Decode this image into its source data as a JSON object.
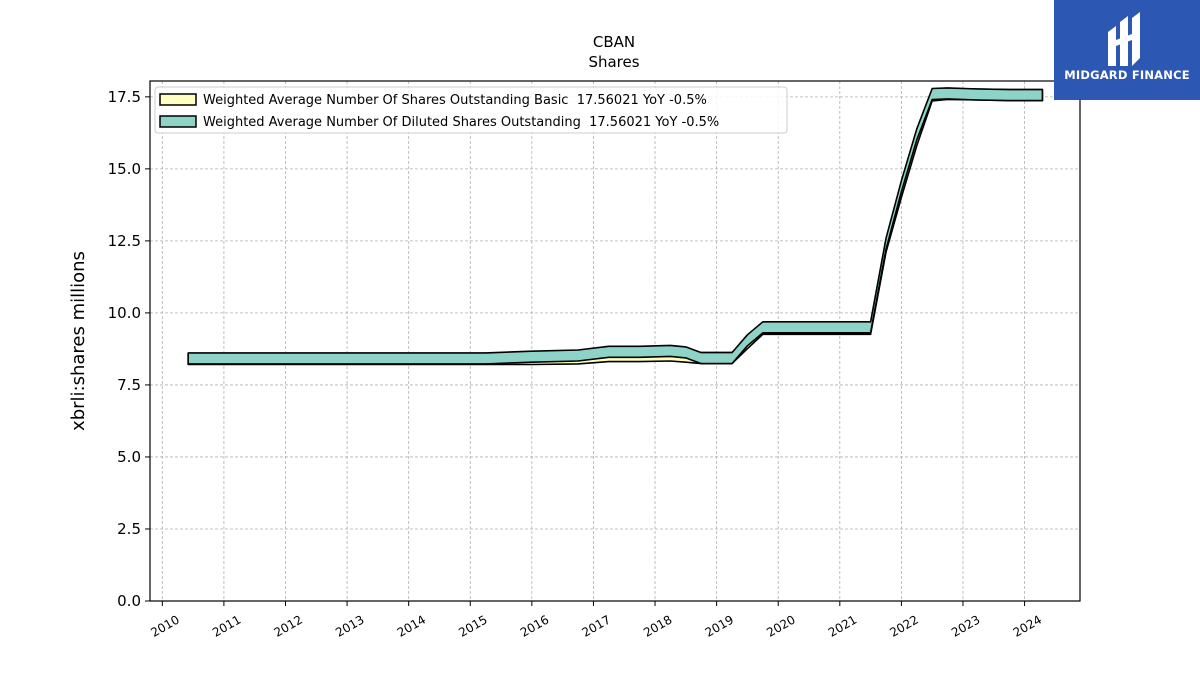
{
  "chart_data": {
    "type": "area",
    "title": "CBAN",
    "subtitle": "Shares",
    "xlabel": "",
    "ylabel": "xbrli:shares millions",
    "xlim": [
      2009.8,
      2024.9
    ],
    "ylim": [
      0,
      18.05
    ],
    "yticks": [
      "0.0",
      "2.5",
      "5.0",
      "7.5",
      "10.0",
      "12.5",
      "15.0",
      "17.5"
    ],
    "xticks": [
      "2010",
      "2011",
      "2012",
      "2013",
      "2014",
      "2015",
      "2016",
      "2017",
      "2018",
      "2019",
      "2020",
      "2021",
      "2022",
      "2023",
      "2024"
    ],
    "grid": true,
    "legend_position": "top-left",
    "series": [
      {
        "name": "Weighted Average Number Of Shares Outstanding Basic  17.56021 YoY -0.5%",
        "color": "#ffffc0",
        "x": [
          2010.42,
          2011.25,
          2012.25,
          2013.25,
          2014.25,
          2015.25,
          2016.0,
          2016.75,
          2017.25,
          2017.75,
          2018.25,
          2018.5,
          2018.75,
          2019.0,
          2019.25,
          2019.5,
          2019.75,
          2020.25,
          2020.75,
          2021.25,
          2021.5,
          2021.75,
          2022.0,
          2022.25,
          2022.5,
          2022.75,
          2023.25,
          2023.75,
          2024.29
        ],
        "y": [
          8.4,
          8.4,
          8.4,
          8.4,
          8.4,
          8.4,
          8.4,
          8.42,
          8.5,
          8.5,
          8.52,
          8.48,
          8.43,
          8.43,
          8.43,
          8.95,
          9.45,
          9.45,
          9.45,
          9.45,
          9.45,
          12.3,
          14.2,
          16.0,
          17.55,
          17.6,
          17.58,
          17.56,
          17.56
        ]
      },
      {
        "name": "Weighted Average Number Of Diluted Shares Outstanding  17.56021 YoY -0.5%",
        "color": "#8dd3c7",
        "x": [
          2010.42,
          2011.25,
          2012.25,
          2013.25,
          2014.25,
          2015.25,
          2016.0,
          2016.75,
          2017.25,
          2017.75,
          2018.25,
          2018.5,
          2018.75,
          2019.0,
          2019.25,
          2019.5,
          2019.75,
          2020.25,
          2020.75,
          2021.25,
          2021.5,
          2021.75,
          2022.0,
          2022.25,
          2022.5,
          2022.75,
          2023.25,
          2023.75,
          2024.29
        ],
        "y": [
          8.42,
          8.42,
          8.42,
          8.42,
          8.42,
          8.42,
          8.48,
          8.52,
          8.65,
          8.65,
          8.68,
          8.63,
          8.43,
          8.43,
          8.43,
          9.05,
          9.5,
          9.5,
          9.5,
          9.5,
          9.5,
          12.4,
          14.4,
          16.2,
          17.6,
          17.62,
          17.58,
          17.56,
          17.56
        ]
      }
    ]
  },
  "logo": {
    "text": "MIDGARD FINANCE",
    "background": "#2c57b3"
  }
}
